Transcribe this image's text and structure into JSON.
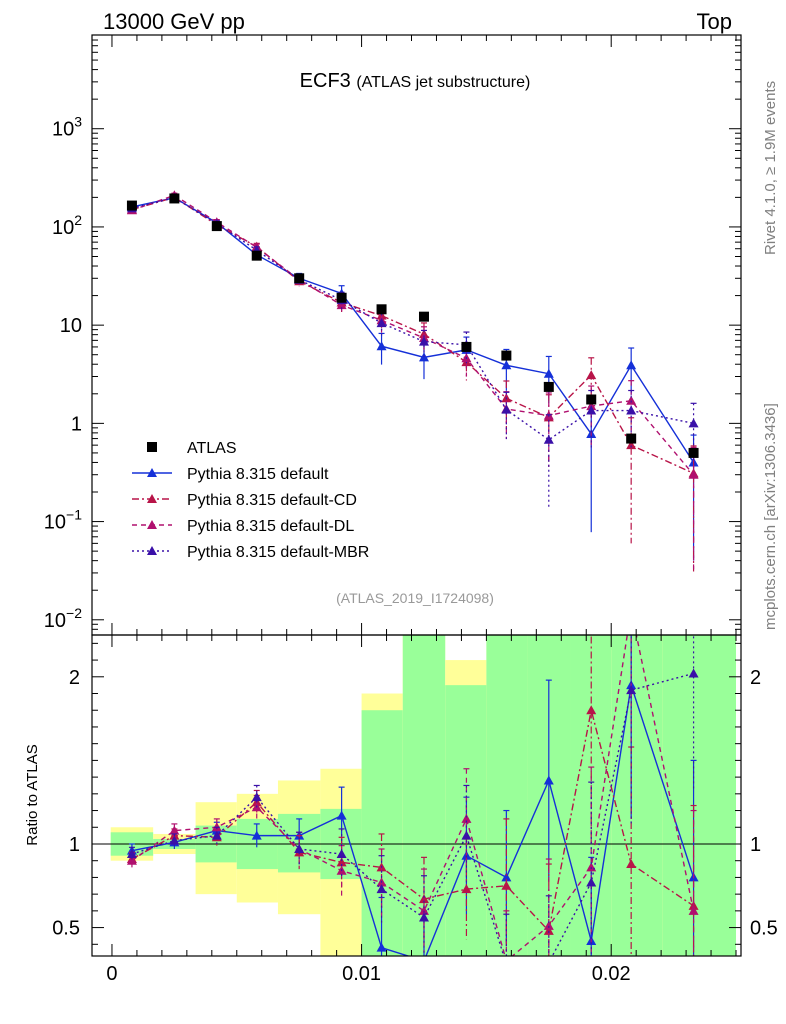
{
  "header": {
    "left": "13000 GeV pp",
    "right": "Top"
  },
  "side_labels": {
    "rivet": "Rivet 4.1.0, ≥ 1.9M events",
    "mcplots": "mcplots.cern.ch [arXiv:1306.3436]"
  },
  "chart_data": {
    "type": "line",
    "title_main": "ECF3",
    "title_sub": "(ATLAS jet substructure)",
    "analysis": "(ATLAS_2019_I1724098)",
    "xlabel": "",
    "ratio_ylabel": "Ratio to ATLAS",
    "xlim": [
      -0.0008,
      0.0252
    ],
    "ylim": [
      0.007,
      9000
    ],
    "ylog": true,
    "ratio_ylim": [
      0.33,
      2.25
    ],
    "x": [
      0.0008,
      0.0025,
      0.0042,
      0.0058,
      0.0075,
      0.0092,
      0.0108,
      0.0125,
      0.0142,
      0.0158,
      0.0175,
      0.0192,
      0.0208,
      0.0233
    ],
    "y_ticks_main": [
      {
        "v": 0.01,
        "b": "10",
        "e": "−2"
      },
      {
        "v": 0.1,
        "b": "10",
        "e": "−1"
      },
      {
        "v": 1,
        "b": "1",
        "e": ""
      },
      {
        "v": 10,
        "b": "10",
        "e": ""
      },
      {
        "v": 100,
        "b": "10",
        "e": "2"
      },
      {
        "v": 1000,
        "b": "10",
        "e": "3"
      }
    ],
    "x_ticks": [
      {
        "v": 0,
        "label": "0"
      },
      {
        "v": 0.01,
        "label": "0.01"
      },
      {
        "v": 0.02,
        "label": "0.02"
      }
    ],
    "ratio_ticks": [
      {
        "v": 0.5,
        "label": "0.5"
      },
      {
        "v": 1,
        "label": "1"
      },
      {
        "v": 2,
        "label": "2"
      }
    ],
    "data": {
      "name": "ATLAS",
      "color": "#000000",
      "values": [
        165,
        195,
        102,
        51,
        30,
        19,
        14.5,
        12.2,
        6.0,
        4.9,
        2.35,
        1.75,
        0.7,
        0.5
      ],
      "band_inner": [
        [
          0.93,
          1.07
        ],
        [
          0.97,
          1.03
        ],
        [
          0.89,
          1.11
        ],
        [
          0.85,
          1.15
        ],
        [
          0.83,
          1.18
        ],
        [
          0.79,
          1.21
        ],
        [
          0.3,
          1.8
        ],
        [
          0.3,
          2.3
        ],
        [
          0.3,
          1.95
        ],
        [
          0.3,
          2.3
        ],
        [
          0.3,
          2.3
        ],
        [
          0.3,
          2.3
        ],
        [
          0.3,
          2.3
        ],
        [
          0.3,
          2.3
        ]
      ],
      "band_outer": [
        [
          0.9,
          1.1
        ],
        [
          0.94,
          1.06
        ],
        [
          0.7,
          1.25
        ],
        [
          0.65,
          1.3
        ],
        [
          0.58,
          1.38
        ],
        [
          0.3,
          1.45
        ],
        [
          0.3,
          1.9
        ],
        [
          0.3,
          2.3
        ],
        [
          0.3,
          2.1
        ],
        [
          0.3,
          2.3
        ],
        [
          0.3,
          2.3
        ],
        [
          0.3,
          2.3
        ],
        [
          0.3,
          2.3
        ],
        [
          0.3,
          2.3
        ]
      ]
    },
    "series": [
      {
        "name": "Pythia 8.315 default",
        "color": "#1530d8",
        "dash": "",
        "values": [
          160,
          198,
          110,
          52,
          30,
          21,
          6.1,
          4.7,
          5.6,
          3.9,
          3.2,
          0.78,
          3.9,
          0.4
        ],
        "err_rel": [
          0.05,
          0.05,
          0.06,
          0.08,
          0.12,
          0.2,
          0.35,
          0.4,
          0.35,
          0.45,
          0.5,
          0.9,
          0.5,
          0.9
        ],
        "ratio": [
          0.96,
          1.01,
          1.08,
          1.05,
          1.05,
          1.17,
          0.38,
          0.3,
          0.93,
          0.8,
          1.38,
          0.42,
          1.95,
          0.8
        ],
        "ratio_err": [
          0.04,
          0.04,
          0.05,
          0.07,
          0.1,
          0.17,
          0.3,
          0.3,
          0.35,
          0.4,
          0.6,
          0.5,
          0.8,
          0.7
        ]
      },
      {
        "name": "Pythia 8.315 default-CD",
        "color": "#b81448",
        "dash": "7,3,2,3",
        "values": [
          150,
          200,
          105,
          63,
          28,
          17,
          12.5,
          8.1,
          4.2,
          1.8,
          1.15,
          3.1,
          0.6,
          0.31
        ],
        "err_rel": [
          0.05,
          0.05,
          0.06,
          0.08,
          0.12,
          0.2,
          0.25,
          0.3,
          0.35,
          0.5,
          0.7,
          0.5,
          0.9,
          0.9
        ],
        "ratio": [
          0.91,
          1.05,
          1.04,
          1.25,
          0.95,
          0.89,
          0.86,
          0.67,
          0.73,
          0.75,
          0.48,
          1.8,
          0.88,
          0.63
        ],
        "ratio_err": [
          0.04,
          0.04,
          0.05,
          0.07,
          0.1,
          0.15,
          0.2,
          0.25,
          0.3,
          0.4,
          0.4,
          0.8,
          0.7,
          0.6
        ]
      },
      {
        "name": "Pythia 8.315 default-DL",
        "color": "#b0106f",
        "dash": "5,4",
        "values": [
          148,
          210,
          112,
          62,
          29,
          16,
          11.2,
          7.4,
          4.6,
          1.4,
          1.2,
          1.5,
          1.7,
          0.3
        ],
        "err_rel": [
          0.05,
          0.05,
          0.06,
          0.08,
          0.12,
          0.2,
          0.25,
          0.3,
          0.35,
          0.5,
          0.7,
          0.6,
          0.6,
          0.9
        ],
        "ratio": [
          0.9,
          1.08,
          1.1,
          1.22,
          0.97,
          0.84,
          0.77,
          0.6,
          1.15,
          0.3,
          0.51,
          0.86,
          2.4,
          0.6
        ],
        "ratio_err": [
          0.04,
          0.04,
          0.05,
          0.07,
          0.1,
          0.15,
          0.2,
          0.25,
          0.3,
          0.3,
          0.4,
          0.6,
          0.8,
          0.6
        ]
      },
      {
        "name": "Pythia 8.315 default-MBR",
        "color": "#3a10a8",
        "dash": "2,3",
        "values": [
          155,
          198,
          108,
          58,
          29,
          18,
          10.5,
          6.8,
          6.3,
          1.38,
          0.68,
          1.35,
          1.35,
          1.0
        ],
        "err_rel": [
          0.05,
          0.05,
          0.06,
          0.08,
          0.12,
          0.2,
          0.25,
          0.3,
          0.35,
          0.5,
          0.8,
          0.6,
          0.6,
          0.6
        ],
        "ratio": [
          0.94,
          1.02,
          1.05,
          1.28,
          0.97,
          0.94,
          0.73,
          0.56,
          1.05,
          0.28,
          0.29,
          0.77,
          1.92,
          2.02
        ],
        "ratio_err": [
          0.04,
          0.04,
          0.05,
          0.07,
          0.1,
          0.15,
          0.2,
          0.25,
          0.3,
          0.3,
          0.4,
          0.6,
          0.8,
          0.7
        ]
      }
    ]
  }
}
